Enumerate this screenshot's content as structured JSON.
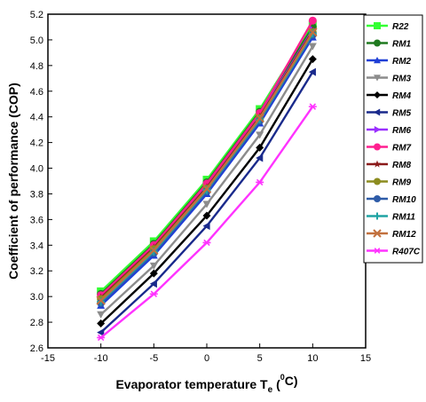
{
  "chart_data": {
    "type": "line",
    "xlabel": "Evaporator temperature T",
    "xlabel_sub": "e",
    "xlabel_tail_open": " (",
    "xlabel_sup": "0",
    "xlabel_tail_close": "C)",
    "ylabel": "Coefficient of performance (COP)",
    "xlim": [
      -15,
      15
    ],
    "ylim": [
      2.6,
      5.2
    ],
    "xticks": [
      "-15",
      "-10",
      "-5",
      "0",
      "5",
      "10",
      "15"
    ],
    "yticks": [
      "2.6",
      "2.8",
      "3.0",
      "3.2",
      "3.4",
      "3.6",
      "3.8",
      "4.0",
      "4.2",
      "4.4",
      "4.6",
      "4.8",
      "5.0",
      "5.2"
    ],
    "legend_position": "right",
    "x": [
      -10,
      -5,
      0,
      5,
      10
    ],
    "series": [
      {
        "name": "R22",
        "color": "#33ff33",
        "marker": "square",
        "values": [
          3.04,
          3.43,
          3.91,
          4.46,
          5.12
        ]
      },
      {
        "name": "RM1",
        "color": "#1f7a1f",
        "marker": "circle",
        "values": [
          3.02,
          3.41,
          3.89,
          4.44,
          5.1
        ]
      },
      {
        "name": "RM2",
        "color": "#1f3fd6",
        "marker": "triangle-up",
        "values": [
          2.93,
          3.32,
          3.8,
          4.35,
          5.02
        ]
      },
      {
        "name": "RM3",
        "color": "#8c8c8c",
        "marker": "triangle-down",
        "values": [
          2.86,
          3.24,
          3.72,
          4.26,
          4.95
        ]
      },
      {
        "name": "RM4",
        "color": "#000000",
        "marker": "diamond",
        "values": [
          2.79,
          3.18,
          3.63,
          4.16,
          4.85
        ]
      },
      {
        "name": "RM5",
        "color": "#1a2a8c",
        "marker": "triangle-left",
        "values": [
          2.72,
          3.1,
          3.55,
          4.08,
          4.75
        ]
      },
      {
        "name": "RM6",
        "color": "#9b30ff",
        "marker": "triangle-right",
        "values": [
          3.0,
          3.39,
          3.86,
          4.41,
          5.08
        ]
      },
      {
        "name": "RM7",
        "color": "#ff1f8f",
        "marker": "circle",
        "values": [
          3.01,
          3.4,
          3.88,
          4.43,
          5.15
        ]
      },
      {
        "name": "RM8",
        "color": "#8b1a1a",
        "marker": "star",
        "values": [
          2.99,
          3.38,
          3.85,
          4.4,
          5.07
        ]
      },
      {
        "name": "RM9",
        "color": "#8c8c1f",
        "marker": "circle",
        "values": [
          2.98,
          3.37,
          3.84,
          4.39,
          5.06
        ]
      },
      {
        "name": "RM10",
        "color": "#2e5ca8",
        "marker": "circle",
        "values": [
          2.95,
          3.34,
          3.82,
          4.37,
          5.04
        ]
      },
      {
        "name": "RM11",
        "color": "#1fa3a3",
        "marker": "plus",
        "values": [
          2.96,
          3.35,
          3.83,
          4.38,
          5.05
        ]
      },
      {
        "name": "RM12",
        "color": "#c2703d",
        "marker": "x",
        "values": [
          2.97,
          3.36,
          3.84,
          4.39,
          5.06
        ]
      },
      {
        "name": "R407C",
        "color": "#ff33ff",
        "marker": "asterisk",
        "values": [
          2.68,
          3.02,
          3.42,
          3.89,
          4.48
        ]
      }
    ]
  }
}
